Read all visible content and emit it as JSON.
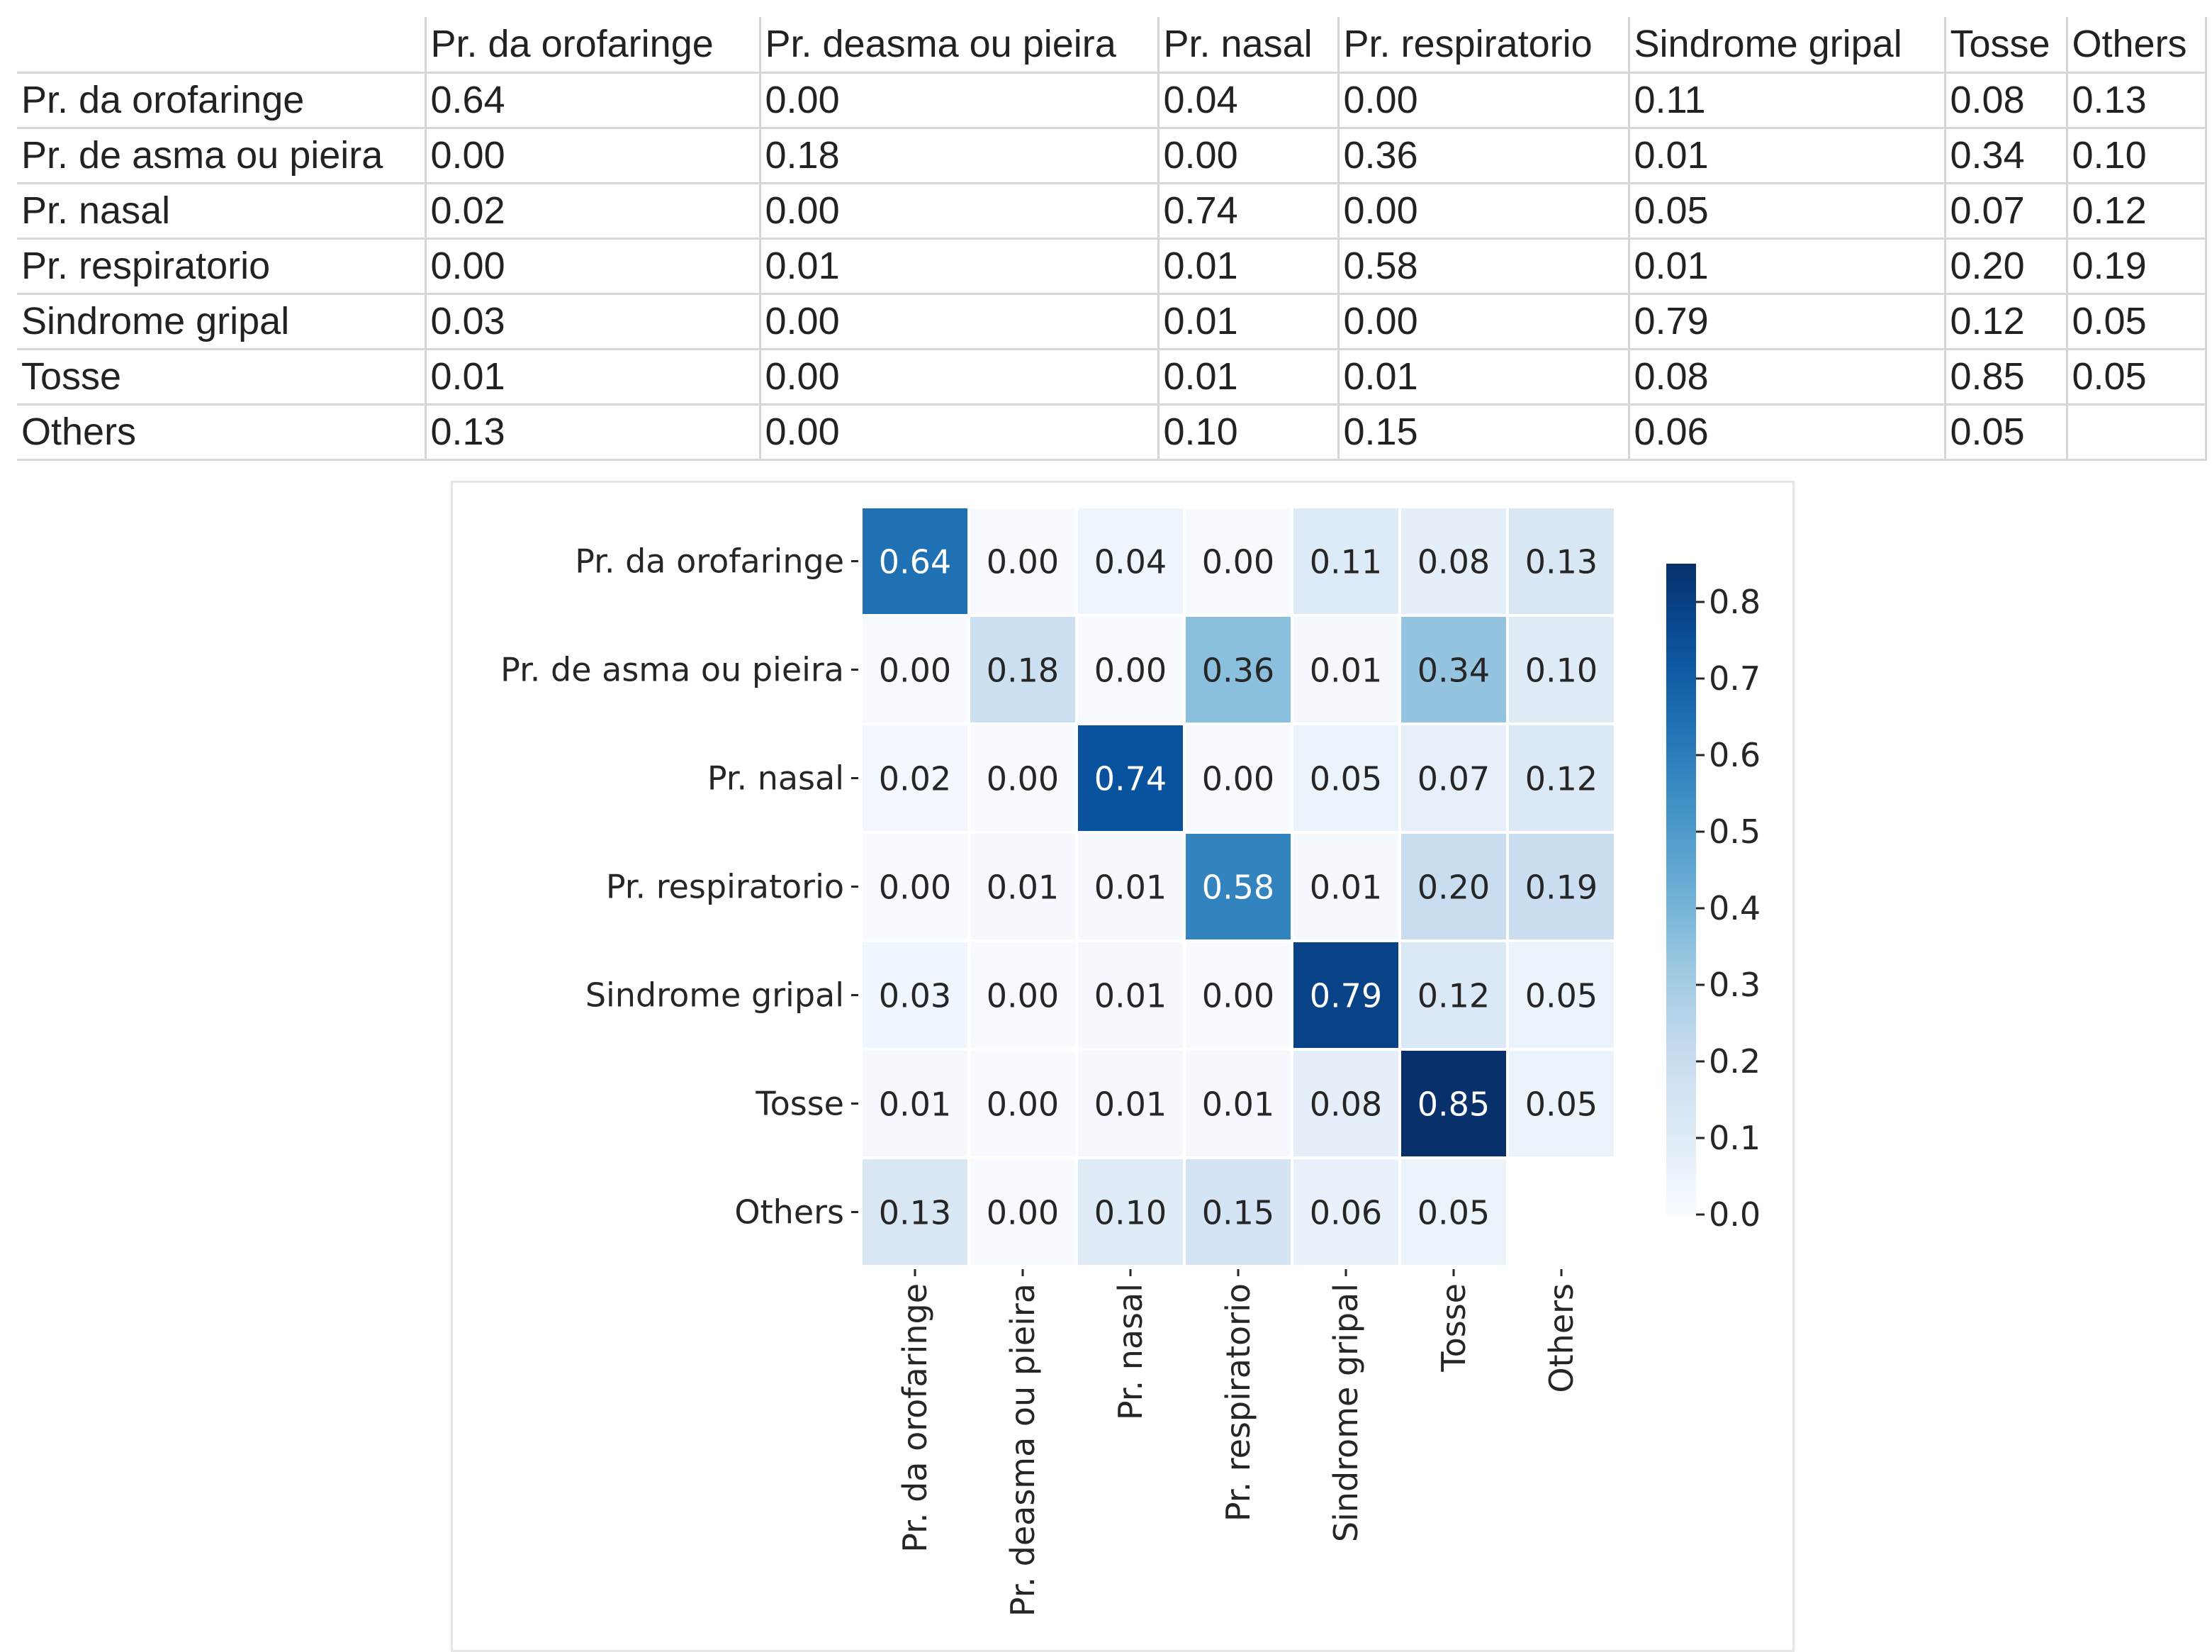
{
  "table": {
    "columns": [
      "Pr. da orofaringe",
      "Pr. deasma ou pieira",
      "Pr. nasal",
      "Pr. respiratorio",
      "Sindrome gripal",
      "Tosse",
      "Others"
    ],
    "rows": [
      {
        "label": "Pr. da orofaringe",
        "cells": [
          "0.64",
          "0.00",
          "0.04",
          "0.00",
          "0.11",
          "0.08",
          "0.13"
        ]
      },
      {
        "label": "Pr. de asma ou pieira",
        "cells": [
          "0.00",
          "0.18",
          "0.00",
          "0.36",
          "0.01",
          "0.34",
          "0.10"
        ]
      },
      {
        "label": "Pr. nasal",
        "cells": [
          "0.02",
          "0.00",
          "0.74",
          "0.00",
          "0.05",
          "0.07",
          "0.12"
        ]
      },
      {
        "label": "Pr. respiratorio",
        "cells": [
          "0.00",
          "0.01",
          "0.01",
          "0.58",
          "0.01",
          "0.20",
          "0.19"
        ]
      },
      {
        "label": "Sindrome gripal",
        "cells": [
          "0.03",
          "0.00",
          "0.01",
          "0.00",
          "0.79",
          "0.12",
          "0.05"
        ]
      },
      {
        "label": "Tosse",
        "cells": [
          "0.01",
          "0.00",
          "0.01",
          "0.01",
          "0.08",
          "0.85",
          "0.05"
        ]
      },
      {
        "label": "Others",
        "cells": [
          "0.13",
          "0.00",
          "0.10",
          "0.15",
          "0.06",
          "0.05",
          ""
        ]
      }
    ]
  },
  "chart_data": {
    "type": "heatmap",
    "title": "",
    "xlabel": "",
    "ylabel": "",
    "y_categories": [
      "Pr. da orofaringe",
      "Pr. de asma ou pieira",
      "Pr. nasal",
      "Pr. respiratorio",
      "Sindrome gripal",
      "Tosse",
      "Others"
    ],
    "x_categories": [
      "Pr. da orofaringe",
      "Pr. deasma ou pieira",
      "Pr. nasal",
      "Pr. respiratorio",
      "Sindrome gripal",
      "Tosse",
      "Others"
    ],
    "values": [
      [
        0.64,
        0.0,
        0.04,
        0.0,
        0.11,
        0.08,
        0.13
      ],
      [
        0.0,
        0.18,
        0.0,
        0.36,
        0.01,
        0.34,
        0.1
      ],
      [
        0.02,
        0.0,
        0.74,
        0.0,
        0.05,
        0.07,
        0.12
      ],
      [
        0.0,
        0.01,
        0.01,
        0.58,
        0.01,
        0.2,
        0.19
      ],
      [
        0.03,
        0.0,
        0.01,
        0.0,
        0.79,
        0.12,
        0.05
      ],
      [
        0.01,
        0.0,
        0.01,
        0.01,
        0.08,
        0.85,
        0.05
      ],
      [
        0.13,
        0.0,
        0.1,
        0.15,
        0.06,
        0.05,
        null
      ]
    ],
    "cell_labels": [
      [
        "0.64",
        "0.00",
        "0.04",
        "0.00",
        "0.11",
        "0.08",
        "0.13"
      ],
      [
        "0.00",
        "0.18",
        "0.00",
        "0.36",
        "0.01",
        "0.34",
        "0.10"
      ],
      [
        "0.02",
        "0.00",
        "0.74",
        "0.00",
        "0.05",
        "0.07",
        "0.12"
      ],
      [
        "0.00",
        "0.01",
        "0.01",
        "0.58",
        "0.01",
        "0.20",
        "0.19"
      ],
      [
        "0.03",
        "0.00",
        "0.01",
        "0.00",
        "0.79",
        "0.12",
        "0.05"
      ],
      [
        "0.01",
        "0.00",
        "0.01",
        "0.01",
        "0.08",
        "0.85",
        "0.05"
      ],
      [
        "0.13",
        "0.00",
        "0.10",
        "0.15",
        "0.06",
        "0.05",
        ""
      ]
    ],
    "colormap": "Blues",
    "colormap_low": "#f7fbff",
    "colormap_high": "#08306b",
    "vmin": 0.0,
    "vmax": 0.85,
    "colorbar_ticks": [
      "0.0",
      "0.1",
      "0.2",
      "0.3",
      "0.4",
      "0.5",
      "0.6",
      "0.7",
      "0.8"
    ],
    "grid": true,
    "legend": "colorbar right"
  }
}
